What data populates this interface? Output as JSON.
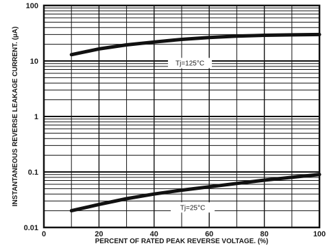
{
  "chart_data": {
    "type": "line",
    "title": "",
    "xlabel": "PERCENT OF RATED PEAK REVERSE VOLTAGE. (%)",
    "ylabel": "INSTANTANEOUS REVERSE LEAKAGE CURRENT. (µA)",
    "xlim": [
      0,
      100
    ],
    "ylim": [
      0.01,
      100
    ],
    "yscale": "log",
    "grid": true,
    "x_ticks": [
      "0",
      "20",
      "40",
      "60",
      "80",
      "100"
    ],
    "y_ticks": [
      "0.01",
      "0.1",
      "1",
      "10",
      "100"
    ],
    "series": [
      {
        "name": "Tj=125°C",
        "x": [
          10,
          20,
          30,
          40,
          50,
          60,
          70,
          80,
          90,
          100
        ],
        "y": [
          13,
          16.5,
          19.5,
          22,
          24.5,
          26.5,
          28,
          29,
          29.5,
          30
        ]
      },
      {
        "name": "Tj=25°C",
        "x": [
          10,
          20,
          30,
          40,
          50,
          60,
          70,
          80,
          90,
          100
        ],
        "y": [
          0.02,
          0.026,
          0.033,
          0.04,
          0.047,
          0.054,
          0.062,
          0.071,
          0.08,
          0.09
        ]
      }
    ],
    "annotations": [
      "Tj=125°C",
      "Tj=25°C"
    ],
    "colors": {
      "line": "#111111",
      "grid": "#111111",
      "background": "#ffffff"
    }
  }
}
